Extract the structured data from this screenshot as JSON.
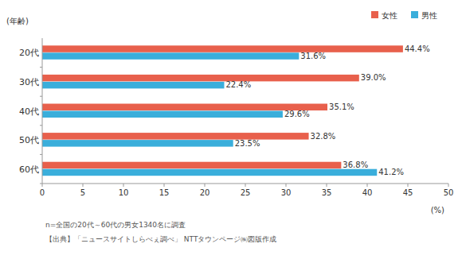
{
  "chart_data": {
    "type": "bar",
    "orientation": "horizontal",
    "y_label": "(年齢)",
    "x_label": "(%)",
    "categories": [
      "20代",
      "30代",
      "40代",
      "50代",
      "60代"
    ],
    "series": [
      {
        "name": "女性",
        "color": "#e8604c",
        "values": [
          44.4,
          39.0,
          35.1,
          32.8,
          36.8
        ],
        "value_labels": [
          "44.4%",
          "39.0%",
          "35.1%",
          "32.8%",
          "36.8%"
        ]
      },
      {
        "name": "男性",
        "color": "#3aaedb",
        "values": [
          31.6,
          22.4,
          29.6,
          23.5,
          41.2
        ],
        "value_labels": [
          "31.6%",
          "22.4%",
          "29.6%",
          "23.5%",
          "41.2%"
        ]
      }
    ],
    "xlim": [
      0,
      50
    ],
    "xticks": [
      0,
      5,
      10,
      15,
      20,
      25,
      30,
      35,
      40,
      45,
      50
    ],
    "grid": false,
    "legend": "upper right",
    "data_labels": true,
    "annotations": [
      "n=全国の20代～60代の男女1340名に調査",
      "【出典】「ニュースサイトしらべぇ調べ」 NTTタウンページ㈱図版作成"
    ]
  }
}
